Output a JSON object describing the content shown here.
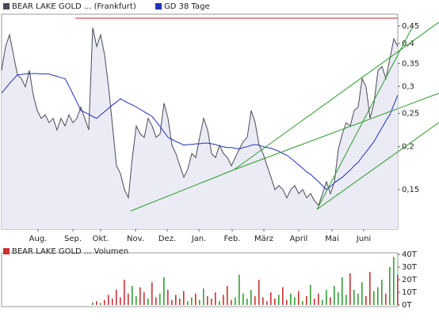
{
  "chart_data": [
    {
      "type": "line",
      "log_y": true,
      "series": [
        {
          "name": "BEAR LAKE GOLD ... (Frankfurt)",
          "color": "#4a4a5a",
          "fill": "#ebebf5",
          "values": [
            0.334,
            0.392,
            0.424,
            0.371,
            0.324,
            0.316,
            0.299,
            0.334,
            0.283,
            0.255,
            0.242,
            0.248,
            0.235,
            0.242,
            0.224,
            0.242,
            0.23,
            0.248,
            0.235,
            0.242,
            0.261,
            0.242,
            0.224,
            0.445,
            0.392,
            0.424,
            0.371,
            0.299,
            0.23,
            0.176,
            0.167,
            0.15,
            0.142,
            0.186,
            0.23,
            0.218,
            0.213,
            0.242,
            0.23,
            0.213,
            0.218,
            0.268,
            0.242,
            0.202,
            0.191,
            0.176,
            0.163,
            0.172,
            0.191,
            0.186,
            0.213,
            0.242,
            0.224,
            0.191,
            0.186,
            0.202,
            0.191,
            0.186,
            0.176,
            0.186,
            0.197,
            0.207,
            0.213,
            0.255,
            0.235,
            0.202,
            0.191,
            0.176,
            0.163,
            0.15,
            0.154,
            0.15,
            0.142,
            0.15,
            0.154,
            0.146,
            0.15,
            0.142,
            0.146,
            0.139,
            0.135,
            0.146,
            0.158,
            0.146,
            0.158,
            0.197,
            0.218,
            0.235,
            0.23,
            0.255,
            0.261,
            0.316,
            0.299,
            0.242,
            0.268,
            0.334,
            0.343,
            0.316,
            0.361,
            0.413,
            0.392
          ]
        },
        {
          "name": "GD 38 Tage",
          "color": "#1f2fb8",
          "values": [
            0.287,
            0.296,
            0.306,
            0.315,
            0.324,
            0.325,
            0.326,
            0.327,
            0.327,
            0.327,
            0.326,
            0.326,
            0.326,
            0.323,
            0.321,
            0.318,
            0.316,
            0.301,
            0.285,
            0.27,
            0.255,
            0.252,
            0.249,
            0.245,
            0.242,
            0.248,
            0.253,
            0.259,
            0.265,
            0.27,
            0.276,
            0.272,
            0.268,
            0.265,
            0.261,
            0.257,
            0.253,
            0.249,
            0.245,
            0.237,
            0.229,
            0.221,
            0.213,
            0.21,
            0.207,
            0.205,
            0.202,
            0.203,
            0.203,
            0.204,
            0.204,
            0.205,
            0.205,
            0.204,
            0.203,
            0.201,
            0.2,
            0.199,
            0.199,
            0.198,
            0.197,
            0.199,
            0.2,
            0.202,
            0.203,
            0.202,
            0.2,
            0.199,
            0.198,
            0.196,
            0.194,
            0.191,
            0.189,
            0.185,
            0.181,
            0.177,
            0.173,
            0.169,
            0.166,
            0.162,
            0.158,
            0.154,
            0.15,
            0.153,
            0.157,
            0.16,
            0.163,
            0.167,
            0.171,
            0.176,
            0.18,
            0.187,
            0.193,
            0.2,
            0.207,
            0.217,
            0.227,
            0.238,
            0.248,
            0.265,
            0.283
          ]
        }
      ],
      "ylim": [
        0.115,
        0.487
      ],
      "yticks": [
        {
          "value": 0.45,
          "label": "0,45"
        },
        {
          "value": 0.4,
          "label": "0,4"
        },
        {
          "value": 0.35,
          "label": "0,35"
        },
        {
          "value": 0.3,
          "label": "0,3"
        },
        {
          "value": 0.25,
          "label": "0,25"
        },
        {
          "value": 0.2,
          "label": "0,2"
        },
        {
          "value": 0.15,
          "label": "0,15"
        }
      ],
      "xlim": [
        0,
        100
      ],
      "xticks": [
        {
          "value": 9.2,
          "label": "Aug."
        },
        {
          "value": 18,
          "label": "Sep."
        },
        {
          "value": 25,
          "label": "Okt."
        },
        {
          "value": 33.8,
          "label": "Nov."
        },
        {
          "value": 41.8,
          "label": "Dez."
        },
        {
          "value": 49.8,
          "label": "Jan."
        },
        {
          "value": 58.2,
          "label": "Feb."
        },
        {
          "value": 66.2,
          "label": "März"
        },
        {
          "value": 75,
          "label": "April"
        },
        {
          "value": 83.4,
          "label": "Mai"
        },
        {
          "value": 91.4,
          "label": "Juni"
        }
      ]
    },
    {
      "type": "bar",
      "series": [
        {
          "name": "BEAR LAKE GOLD ... Volumen",
          "color": "#cc3333",
          "up_color": "#33a033",
          "values": [
            0,
            0,
            0,
            0,
            0,
            0,
            0,
            0,
            0,
            0,
            0,
            0,
            0,
            0,
            0,
            0,
            0,
            0,
            0,
            0,
            0,
            0,
            0,
            2000,
            3000,
            1500,
            4000,
            8000,
            5000,
            12000,
            6000,
            20000,
            9000,
            15000,
            7000,
            14000,
            10000,
            5000,
            18000,
            6000,
            9000,
            22000,
            12000,
            4000,
            8000,
            5000,
            11000,
            3000,
            6000,
            9000,
            4000,
            13000,
            7000,
            5000,
            10000,
            3000,
            8000,
            15000,
            4000,
            6000,
            24000,
            9000,
            5000,
            12000,
            7000,
            20000,
            6000,
            3000,
            10000,
            5000,
            8000,
            14000,
            4000,
            9000,
            6000,
            11000,
            3000,
            7000,
            16000,
            5000,
            9000,
            4000,
            12000,
            6000,
            15000,
            10000,
            22000,
            8000,
            25000,
            12000,
            9000,
            18000,
            7000,
            26000,
            11000,
            14000,
            20000,
            9000,
            30000,
            38000,
            24000
          ]
        }
      ],
      "ylim": [
        0,
        40000
      ],
      "yticks": [
        {
          "value": 0,
          "label": "0T"
        },
        {
          "value": 10000,
          "label": "10T"
        },
        {
          "value": 20000,
          "label": "20T"
        },
        {
          "value": 30000,
          "label": "30T"
        },
        {
          "value": 40000,
          "label": "40T"
        }
      ],
      "xlim": [
        0,
        100
      ]
    }
  ]
}
